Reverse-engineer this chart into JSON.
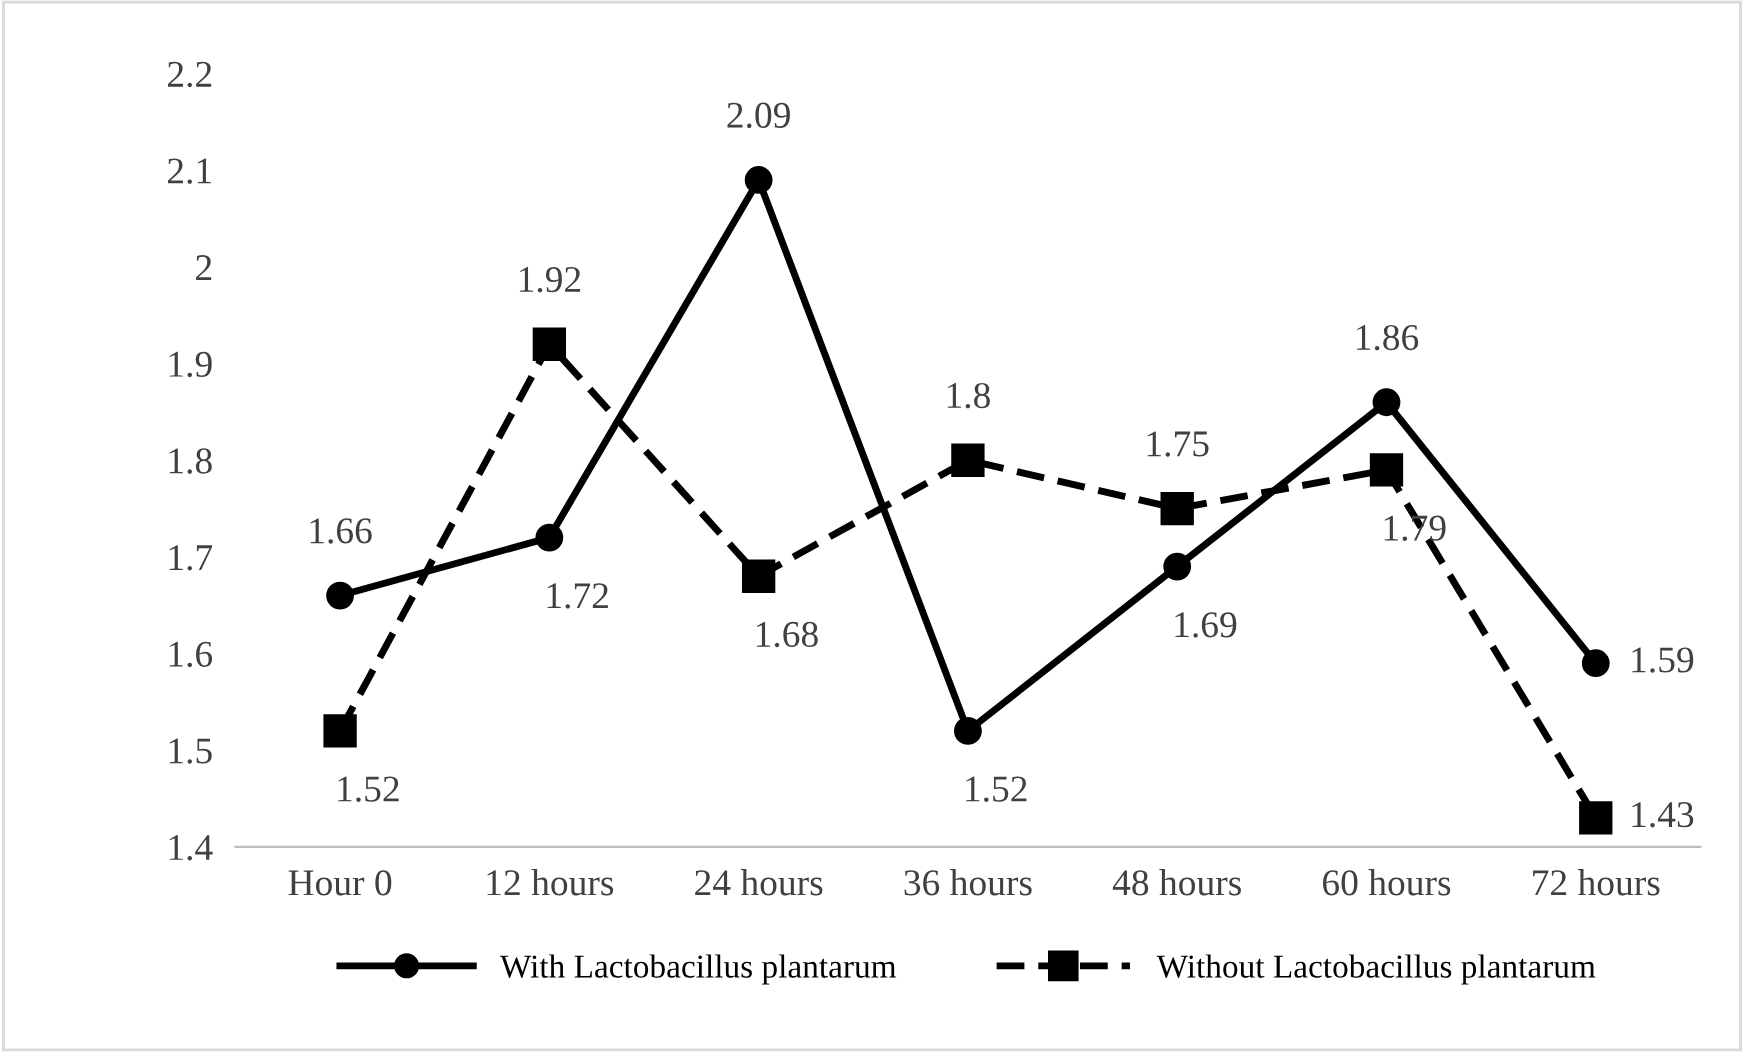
{
  "chart_data": {
    "type": "line",
    "categories": [
      "Hour 0",
      "12 hours",
      "24 hours",
      "36 hours",
      "48 hours",
      "60 hours",
      "72 hours"
    ],
    "series": [
      {
        "name": "With Lactobacillus plantarum",
        "color": "#000000",
        "marker": "circle",
        "line_style": "solid",
        "values": [
          1.66,
          1.72,
          2.09,
          1.52,
          1.69,
          1.86,
          1.59
        ]
      },
      {
        "name": "Without Lactobacillus plantarum",
        "color": "#000000",
        "marker": "square",
        "line_style": "dashed",
        "values": [
          1.52,
          1.92,
          1.68,
          1.8,
          1.75,
          1.79,
          1.43
        ]
      }
    ],
    "ylim": [
      1.4,
      2.2
    ],
    "yticks": [
      1.4,
      1.5,
      1.6,
      1.7,
      1.8,
      1.9,
      2,
      2.1,
      2.2
    ],
    "grid": false,
    "legend": "bottom",
    "data_labels": true
  }
}
